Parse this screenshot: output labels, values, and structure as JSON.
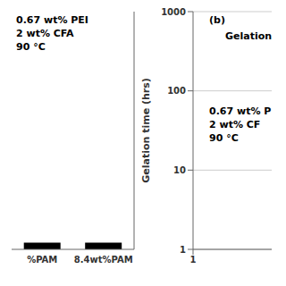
{
  "chart_data": [
    {
      "type": "bar",
      "categories": [
        "%PAM",
        "8.4wt%PAM"
      ],
      "values": [
        8,
        8
      ],
      "color": "black",
      "ylim": [
        0,
        280
      ],
      "tick_labels": "x",
      "annotations": [
        "0.67 wt% PEI\n2 wt% CFA\n90 °C"
      ]
    },
    {
      "type": "line",
      "ylabel": "Gelation time (hrs)",
      "xlim": [
        1,
        20
      ],
      "xticks": [
        1
      ],
      "ylim": [
        1,
        1000
      ],
      "yticks": [
        1,
        10,
        100,
        1000
      ],
      "log": "y",
      "grid": true,
      "annotations": [
        "(b)",
        "Gelation",
        "0.67 wt% P\n2 wt% CF\n90 °C"
      ]
    }
  ]
}
